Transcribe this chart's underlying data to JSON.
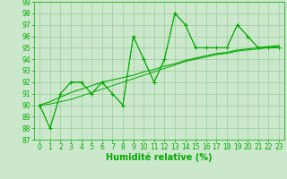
{
  "x": [
    0,
    1,
    2,
    3,
    4,
    5,
    6,
    7,
    8,
    9,
    10,
    11,
    12,
    13,
    14,
    15,
    16,
    17,
    18,
    19,
    20,
    21,
    22,
    23
  ],
  "series_main": [
    90,
    88,
    91,
    92,
    92,
    91,
    92,
    91,
    90,
    96,
    94,
    92,
    94,
    98,
    97,
    95,
    95,
    95,
    95,
    97,
    96,
    95,
    95,
    95
  ],
  "series2": [
    90,
    88,
    91,
    92,
    92,
    91,
    92,
    91,
    90,
    96,
    94,
    92,
    94,
    98,
    97,
    95,
    95,
    95,
    95,
    97,
    96,
    95,
    95,
    95
  ],
  "trend1": [
    90.0,
    90.3,
    90.7,
    91.1,
    91.4,
    91.7,
    92.0,
    92.2,
    92.4,
    92.6,
    92.9,
    93.1,
    93.4,
    93.6,
    93.9,
    94.1,
    94.3,
    94.5,
    94.6,
    94.8,
    94.9,
    95.0,
    95.1,
    95.2
  ],
  "trend2": [
    90.0,
    90.1,
    90.3,
    90.5,
    90.8,
    91.1,
    91.4,
    91.7,
    92.0,
    92.3,
    92.6,
    92.9,
    93.2,
    93.5,
    93.8,
    94.0,
    94.2,
    94.4,
    94.5,
    94.7,
    94.8,
    94.9,
    95.0,
    95.1
  ],
  "line_color": "#00aa00",
  "bg_color": "#cce8cc",
  "grid_color": "#99cc99",
  "xlabel": "Humidité relative (%)",
  "ylim": [
    87,
    99
  ],
  "xlim": [
    -0.5,
    23.5
  ],
  "yticks": [
    87,
    88,
    89,
    90,
    91,
    92,
    93,
    94,
    95,
    96,
    97,
    98,
    99
  ],
  "xticks": [
    0,
    1,
    2,
    3,
    4,
    5,
    6,
    7,
    8,
    9,
    10,
    11,
    12,
    13,
    14,
    15,
    16,
    17,
    18,
    19,
    20,
    21,
    22,
    23
  ],
  "tick_fontsize": 5.5,
  "xlabel_fontsize": 7
}
